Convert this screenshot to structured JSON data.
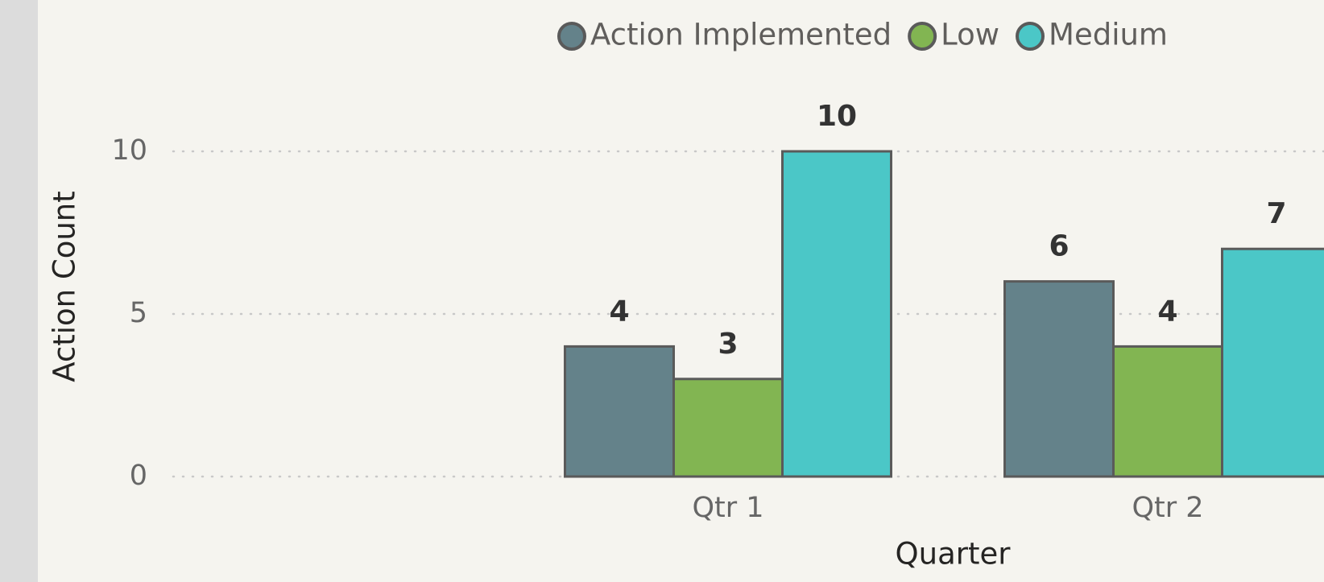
{
  "chart_data": {
    "type": "bar",
    "categories": [
      "Qtr 1",
      "Qtr 2"
    ],
    "series": [
      {
        "name": "Action Implemented",
        "color": "#64828a",
        "values": [
          4,
          6
        ]
      },
      {
        "name": "Low",
        "color": "#82b552",
        "values": [
          3,
          4
        ]
      },
      {
        "name": "Medium",
        "color": "#4bc7c7",
        "values": [
          10,
          7
        ]
      }
    ],
    "x_label": "Quarter",
    "y_label": "Action Count",
    "ylim": [
      0,
      10
    ],
    "yticks": [
      0,
      5,
      10
    ],
    "grid": true
  }
}
